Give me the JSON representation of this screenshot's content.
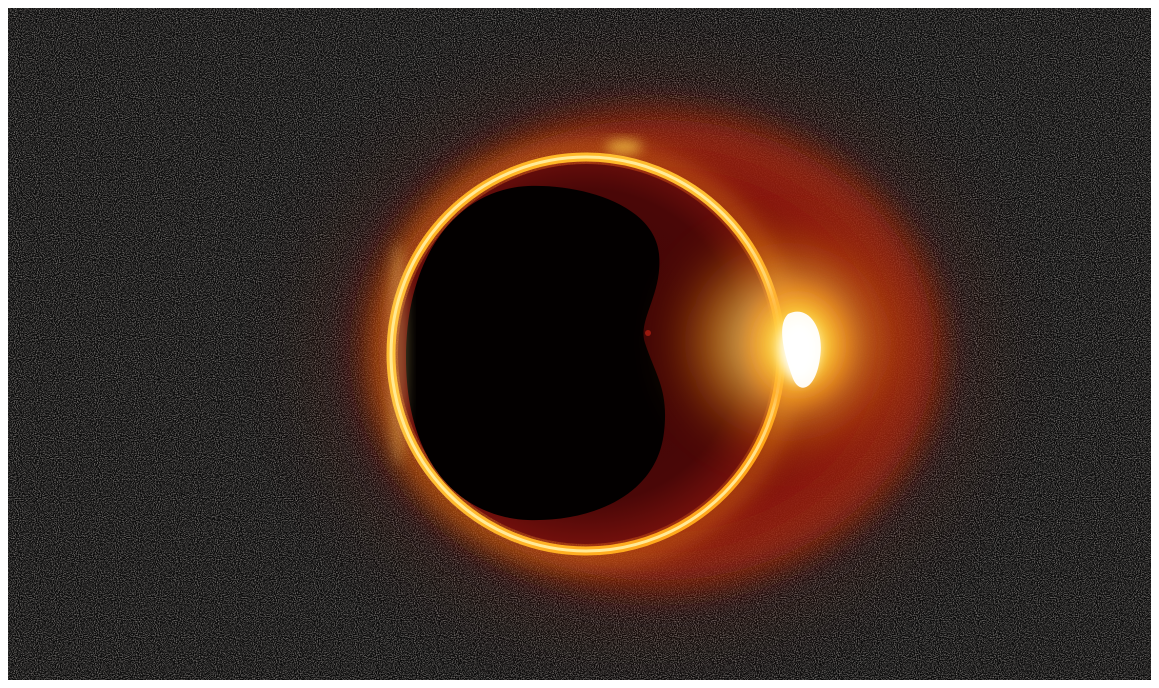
{
  "image": {
    "subject": "eclipse-ring",
    "colors": {
      "background": "#070707",
      "noise": "#e9dcd2",
      "outer_halo": "#7a1208",
      "inner_disk": "#4a0707",
      "ring": "#ffb21f",
      "ring_core": "#fff2a6",
      "flare": "#ffffff",
      "border": "#ffffff"
    }
  }
}
